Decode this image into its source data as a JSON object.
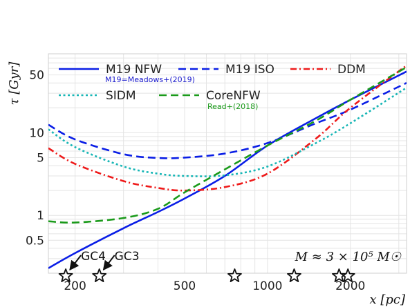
{
  "chart_data": {
    "type": "line",
    "x_scale": "log",
    "y_scale": "log",
    "xlim": [
      160,
      3200
    ],
    "ylim": [
      0.2,
      90
    ],
    "grid": true,
    "xlabel": "x [pc]",
    "ylabel": "τ [Gyr]",
    "x_ticks": [
      {
        "value": 200,
        "label": "200"
      },
      {
        "value": 500,
        "label": "500"
      },
      {
        "value": 1000,
        "label": "1000"
      },
      {
        "value": 2000,
        "label": "2000"
      }
    ],
    "y_ticks": [
      {
        "value": 0.5,
        "label": "0.5"
      },
      {
        "value": 1,
        "label": "1"
      },
      {
        "value": 5,
        "label": "5"
      },
      {
        "value": 10,
        "label": "10"
      },
      {
        "value": 50,
        "label": "50"
      }
    ],
    "legend_position": "top",
    "legend_notes": [
      {
        "text": "M19=Meadows+(2019)",
        "color": "#1a1acc"
      },
      {
        "text": "Read+(2018)",
        "color": "#1a9a1a"
      }
    ],
    "annotation": "M ≈ 3 × 10⁵ M☉",
    "series": [
      {
        "name": "M19 NFW",
        "color": "#0a1ee6",
        "dash": "solid",
        "x": [
          160,
          200,
          300,
          400,
          500,
          700,
          1000,
          1500,
          2000,
          3200
        ],
        "y": [
          0.23,
          0.35,
          0.7,
          1.1,
          1.6,
          3.0,
          7.0,
          15,
          25,
          55
        ]
      },
      {
        "name": "M19 ISO",
        "color": "#0a1ee6",
        "dash": "dashed",
        "x": [
          160,
          200,
          300,
          400,
          500,
          700,
          1000,
          1500,
          2000,
          3200
        ],
        "y": [
          12.5,
          8.3,
          5.5,
          4.95,
          5.0,
          5.6,
          7.5,
          13,
          19,
          40
        ]
      },
      {
        "name": "DDM",
        "color": "#ee1a1a",
        "dash": "dashdot",
        "x": [
          160,
          200,
          300,
          400,
          500,
          700,
          1000,
          1500,
          2000,
          3200
        ],
        "y": [
          6.5,
          4.2,
          2.6,
          2.15,
          2.0,
          2.2,
          3.2,
          8.5,
          20,
          65
        ]
      },
      {
        "name": "SIDM",
        "color": "#18b6b6",
        "dash": "dotted",
        "x": [
          160,
          200,
          300,
          400,
          500,
          700,
          1000,
          1500,
          2000,
          3200
        ],
        "y": [
          11,
          6.7,
          3.9,
          3.2,
          3.0,
          3.05,
          3.9,
          7.5,
          13,
          35
        ]
      },
      {
        "name": "CoreNFW",
        "color": "#1a9a1a",
        "dash": "dashed",
        "x": [
          160,
          200,
          300,
          400,
          500,
          700,
          1000,
          1500,
          2000,
          3200
        ],
        "y": [
          0.85,
          0.82,
          0.93,
          1.2,
          1.9,
          3.6,
          7.0,
          14,
          25,
          62
        ]
      }
    ],
    "star_markers": {
      "x": [
        185,
        245,
        760,
        1250,
        1820,
        1960
      ],
      "y": 0.2
    },
    "star_labels": [
      {
        "text": "GC4",
        "target_x": 185
      },
      {
        "text": "GC3",
        "target_x": 245
      }
    ]
  }
}
